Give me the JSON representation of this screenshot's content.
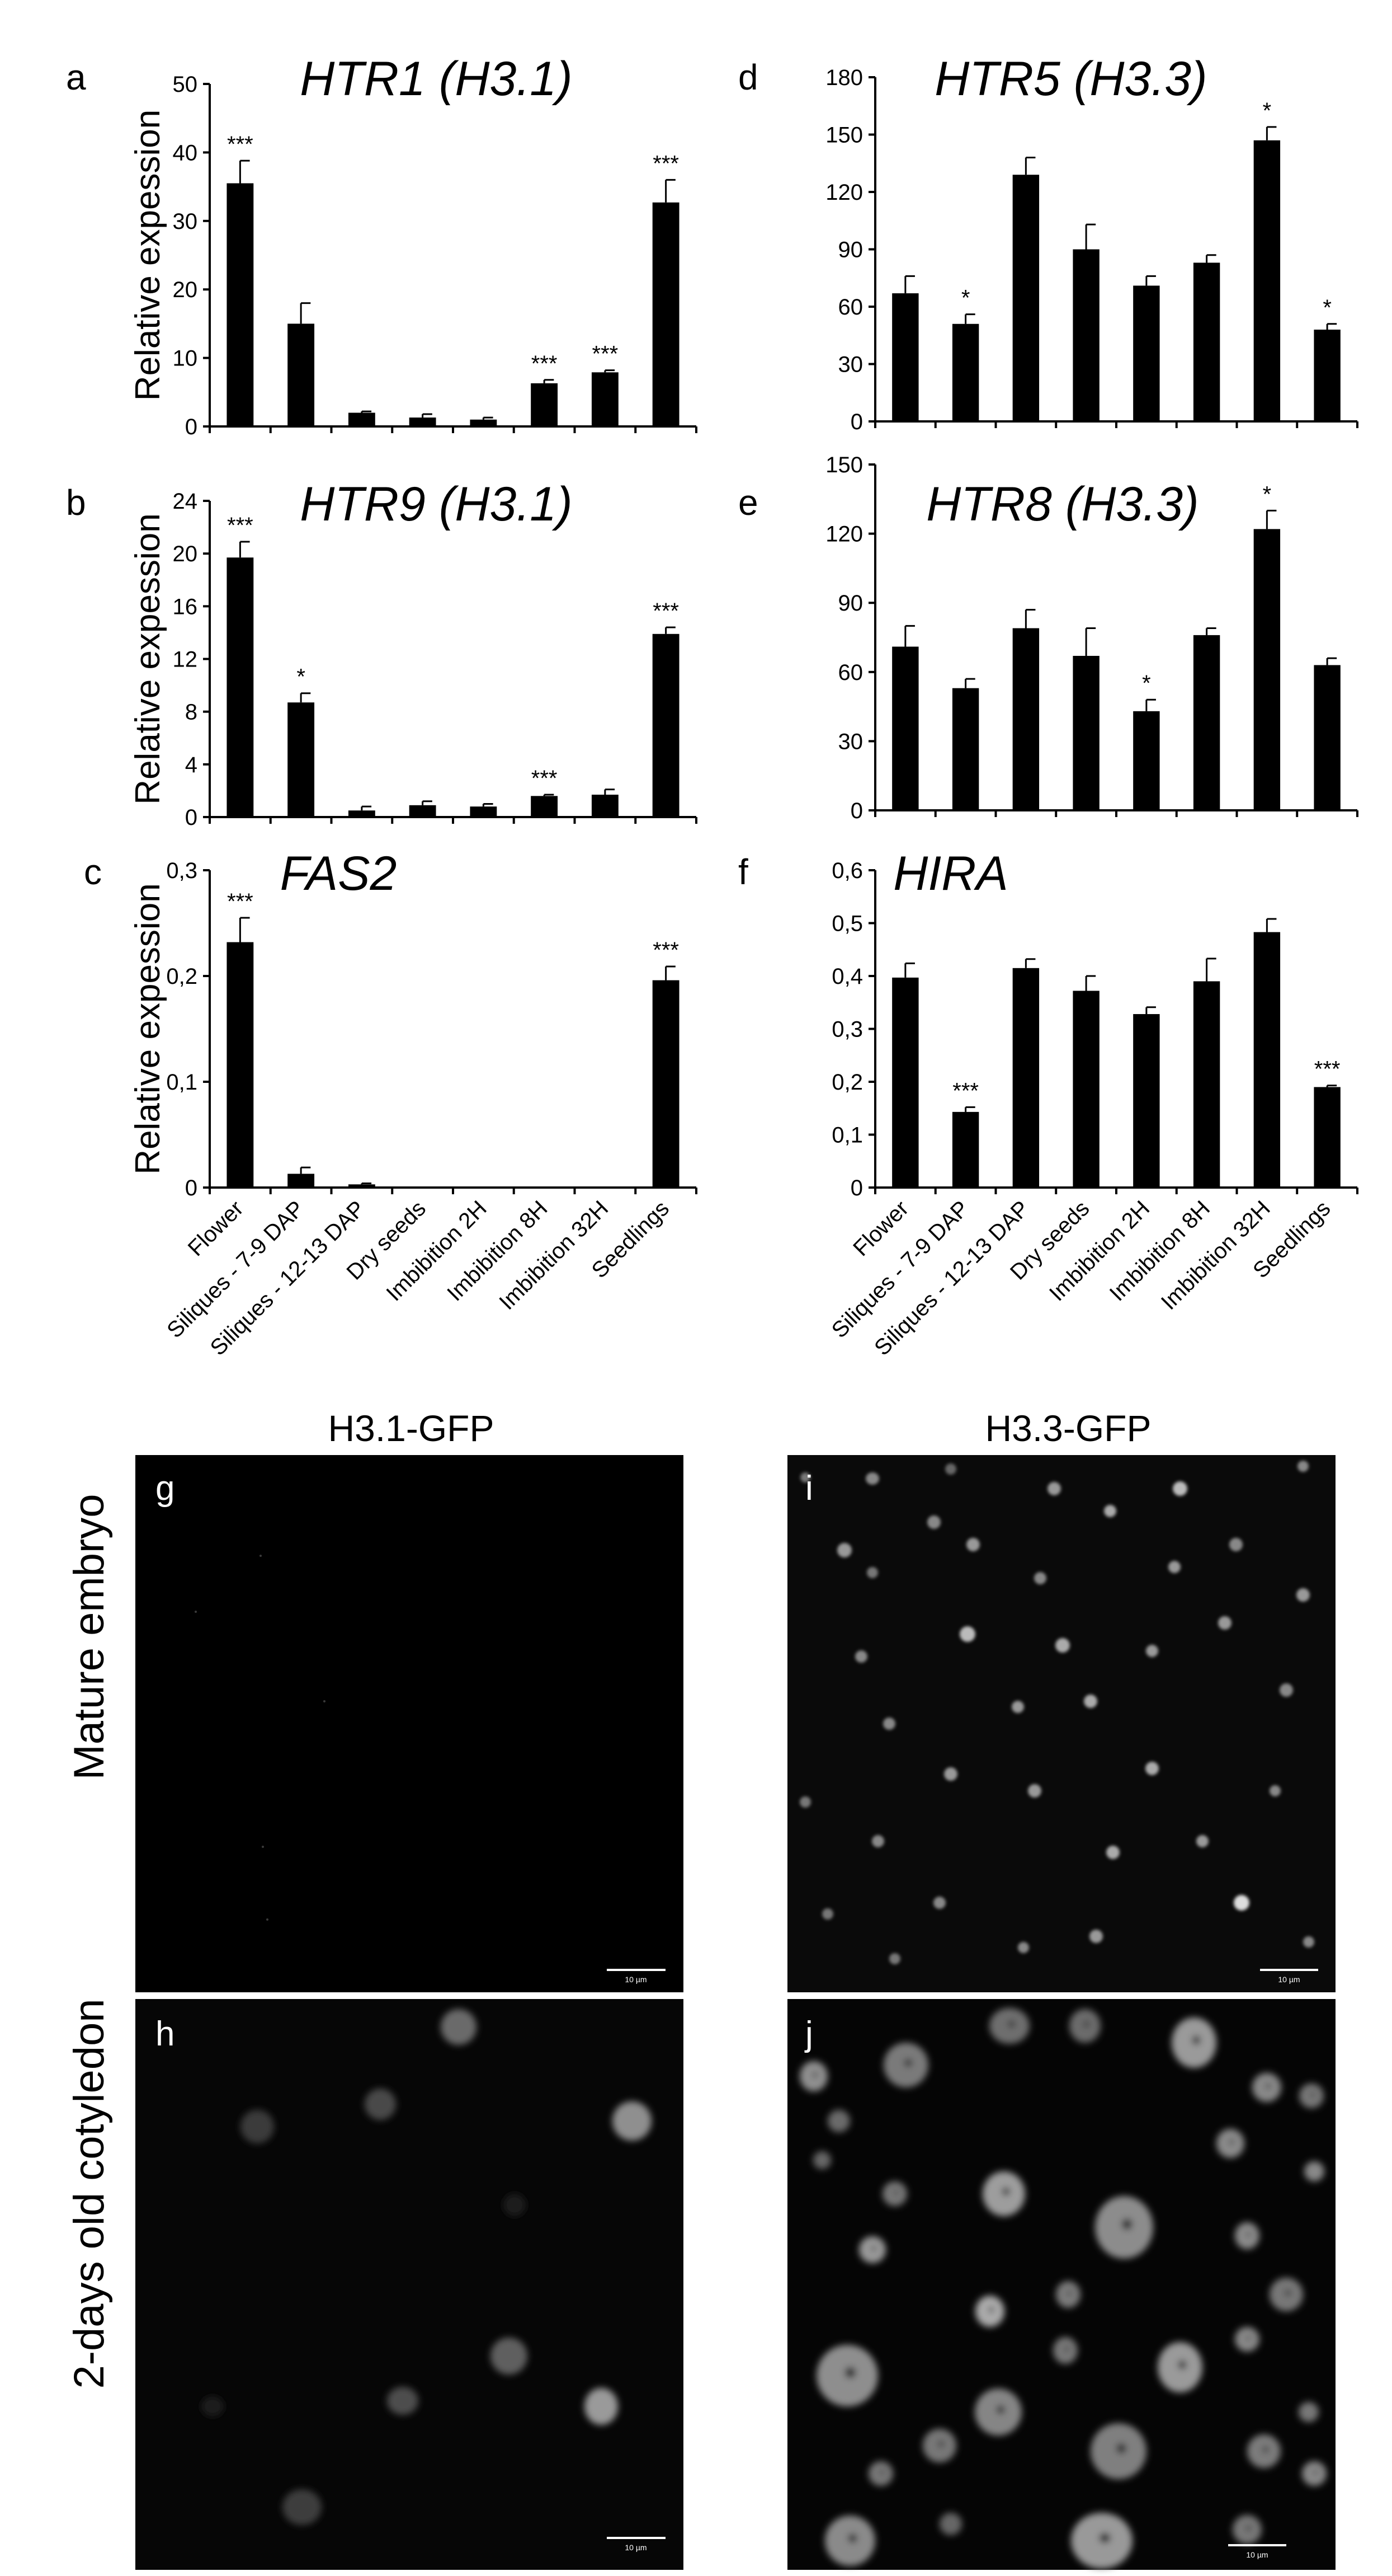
{
  "chart_data": [
    {
      "type": "bar",
      "letter": "a",
      "title": "HTR1 (H3.1)",
      "ylabel": "Relative expession",
      "ylim": [
        0,
        50
      ],
      "yticks": [
        "0",
        "10",
        "20",
        "30",
        "40",
        "50"
      ],
      "categories": [
        "Flower",
        "Siliques - 7-9 DAP",
        "Siliques - 12-13 DAP",
        "Dry seeds",
        "Imbibition 2H",
        "Imbibition 8H",
        "Imbibition 32H",
        "Seedlings"
      ],
      "values": [
        35.5,
        15,
        2,
        1.3,
        1,
        6.3,
        7.9,
        32.7
      ],
      "errors": [
        3.3,
        3,
        0.2,
        0.5,
        0.3,
        0.5,
        0.3,
        3.3
      ],
      "significance": [
        "***",
        "",
        "",
        "",
        "",
        "***",
        "***",
        "***"
      ]
    },
    {
      "type": "bar",
      "letter": "b",
      "title": "HTR9 (H3.1)",
      "ylabel": "Relative expession",
      "ylim": [
        0,
        24
      ],
      "yticks": [
        "0",
        "4",
        "8",
        "12",
        "16",
        "20",
        "24"
      ],
      "categories": [
        "Flower",
        "Siliques - 7-9 DAP",
        "Siliques - 12-13 DAP",
        "Dry seeds",
        "Imbibition 2H",
        "Imbibition 8H",
        "Imbibition 32H",
        "Seedlings"
      ],
      "values": [
        19.7,
        8.7,
        0.5,
        0.9,
        0.8,
        1.6,
        1.7,
        13.9
      ],
      "errors": [
        1.2,
        0.7,
        0.3,
        0.3,
        0.2,
        0.1,
        0.4,
        0.5
      ],
      "significance": [
        "***",
        "*",
        "",
        "",
        "",
        "***",
        "",
        "***"
      ]
    },
    {
      "type": "bar",
      "letter": "c",
      "title": "FAS2",
      "ylabel": "Relative expession",
      "ylim": [
        0,
        0.3
      ],
      "yticks": [
        "0",
        "0,1",
        "0,2",
        "0,3"
      ],
      "categories": [
        "Flower",
        "Siliques - 7-9 DAP",
        "Siliques - 12-13 DAP",
        "Dry seeds",
        "Imbibition 2H",
        "Imbibition 8H",
        "Imbibition 32H",
        "Seedlings"
      ],
      "values": [
        0.232,
        0.013,
        0.003,
        0.001,
        0.001,
        0.001,
        0.001,
        0.196
      ],
      "errors": [
        0.023,
        0.006,
        0.001,
        0.0005,
        0.0005,
        0.0005,
        0.0005,
        0.013
      ],
      "significance": [
        "***",
        "",
        "",
        "",
        "",
        "",
        "",
        "***"
      ]
    },
    {
      "type": "bar",
      "letter": "d",
      "title": "HTR5 (H3.3)",
      "ylabel": "",
      "ylim": [
        0,
        180
      ],
      "yticks": [
        "0",
        "30",
        "60",
        "90",
        "120",
        "150",
        "180"
      ],
      "categories": [
        "Flower",
        "Siliques - 7-9 DAP",
        "Siliques - 12-13 DAP",
        "Dry seeds",
        "Imbibition 2H",
        "Imbibition 8H",
        "Imbibition 32H",
        "Seedlings"
      ],
      "values": [
        67,
        51,
        129,
        90,
        71,
        83,
        147,
        48
      ],
      "errors": [
        9,
        5,
        9,
        13,
        5,
        4,
        7,
        3
      ],
      "significance": [
        "",
        "*",
        "",
        "",
        "",
        "",
        "*",
        "*"
      ]
    },
    {
      "type": "bar",
      "letter": "e",
      "title": "HTR8 (H3.3)",
      "ylabel": "",
      "ylim": [
        0,
        150
      ],
      "yticks": [
        "0",
        "30",
        "60",
        "90",
        "120",
        "150"
      ],
      "categories": [
        "Flower",
        "Siliques - 7-9 DAP",
        "Siliques - 12-13 DAP",
        "Dry seeds",
        "Imbibition 2H",
        "Imbibition 8H",
        "Imbibition 32H",
        "Seedlings"
      ],
      "values": [
        71,
        53,
        79,
        67,
        43,
        76,
        122,
        63
      ],
      "errors": [
        9,
        4,
        8,
        12,
        5,
        3,
        8,
        3
      ],
      "significance": [
        "",
        "",
        "",
        "",
        "*",
        "",
        "*",
        ""
      ]
    },
    {
      "type": "bar",
      "letter": "f",
      "title": "HIRA",
      "ylabel": "",
      "ylim": [
        0,
        0.6
      ],
      "yticks": [
        "0",
        "0,1",
        "0,2",
        "0,3",
        "0,4",
        "0,5",
        "0,6"
      ],
      "categories": [
        "Flower",
        "Siliques - 7-9 DAP",
        "Siliques - 12-13 DAP",
        "Dry seeds",
        "Imbibition 2H",
        "Imbibition 8H",
        "Imbibition 32H",
        "Seedlings"
      ],
      "values": [
        0.397,
        0.143,
        0.415,
        0.372,
        0.328,
        0.39,
        0.483,
        0.19
      ],
      "errors": [
        0.027,
        0.009,
        0.017,
        0.028,
        0.013,
        0.043,
        0.025,
        0.003
      ],
      "significance": [
        "",
        "***",
        "",
        "",
        "",
        "",
        "",
        "***"
      ]
    }
  ],
  "micrographs": {
    "columns": [
      "H3.1-GFP",
      "H3.3-GFP"
    ],
    "rows": [
      "Mature embryo",
      "2-days old cotyledon"
    ],
    "panels": [
      {
        "letter": "g",
        "scale_label": "10 µm"
      },
      {
        "letter": "i",
        "scale_label": "10 µm"
      },
      {
        "letter": "h",
        "scale_label": "10 µm"
      },
      {
        "letter": "j",
        "scale_label": "10 µm"
      }
    ]
  }
}
